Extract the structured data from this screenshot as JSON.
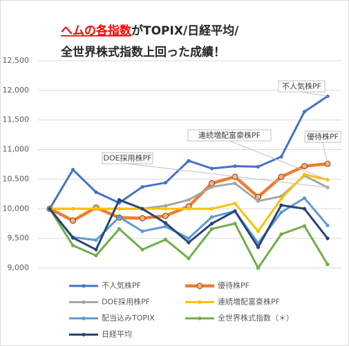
{
  "chart_data": {
    "type": "line",
    "title": {
      "highlight": "ヘムの各指数",
      "rest": "がTOPIX/日経平均/",
      "line2": "全世界株式指数上回った成績！"
    },
    "categories": [
      null,
      null,
      null,
      null,
      null,
      null,
      null,
      null,
      null,
      null,
      null,
      null,
      null
    ],
    "ylim": [
      9000,
      12500
    ],
    "yticks": [
      {
        "value": 9000,
        "label": "9,000"
      },
      {
        "value": 9500,
        "label": "9,500"
      },
      {
        "value": 10000,
        "label": "10,000"
      },
      {
        "value": 10500,
        "label": "10,500"
      },
      {
        "value": 11000,
        "label": "11,000"
      },
      {
        "value": 11500,
        "label": "11,500"
      },
      {
        "value": 12000,
        "label": "12,000"
      },
      {
        "value": 12500,
        "label": "12,500"
      }
    ],
    "grid": true,
    "legend": "bottom",
    "series": [
      {
        "name": "不人気株PF",
        "color": "#4472c4",
        "values": [
          10000,
          10660,
          10280,
          10100,
          10370,
          10440,
          10810,
          10680,
          10720,
          10710,
          10880,
          11640,
          11900
        ]
      },
      {
        "name": "優待株PF",
        "color": "#ed7d31",
        "values": [
          10000,
          9800,
          10020,
          9850,
          9840,
          9880,
          10040,
          10430,
          10540,
          10200,
          10540,
          10720,
          10760
        ]
      },
      {
        "name": "DOE採用株PF",
        "color": "#a5a5a5",
        "values": [
          10000,
          10000,
          10000,
          10000,
          10000,
          10050,
          10150,
          10370,
          10430,
          10130,
          10210,
          10560,
          10360
        ]
      },
      {
        "name": "連続増配富豪株PF",
        "color": "#ffc000",
        "values": [
          10000,
          10000,
          10000,
          10000,
          10000,
          10000,
          10000,
          10000,
          10090,
          9620,
          10170,
          10580,
          10490
        ]
      },
      {
        "name": "配当込みTOPIX",
        "color": "#5b9bd5",
        "values": [
          10000,
          9520,
          9470,
          9860,
          9620,
          9700,
          9500,
          9860,
          9960,
          9420,
          9940,
          10180,
          9720
        ]
      },
      {
        "name": "全世界株式指数（＊）",
        "color": "#70ad47",
        "values": [
          10000,
          9380,
          9210,
          9660,
          9310,
          9480,
          9160,
          9660,
          9750,
          9000,
          9570,
          9710,
          9060
        ]
      },
      {
        "name": "日経平均",
        "color": "#264478",
        "values": [
          10000,
          9510,
          9310,
          10150,
          10000,
          9760,
          9430,
          9750,
          9960,
          9350,
          10060,
          10000,
          9500
        ]
      }
    ],
    "annotations": [
      {
        "text": "不人気株PF",
        "series": 0
      },
      {
        "text": "優待株PF",
        "series": 1
      },
      {
        "text": "連続増配富豪株PF",
        "series": 3
      },
      {
        "text": "DOE採用株PF",
        "series": 2
      }
    ]
  }
}
